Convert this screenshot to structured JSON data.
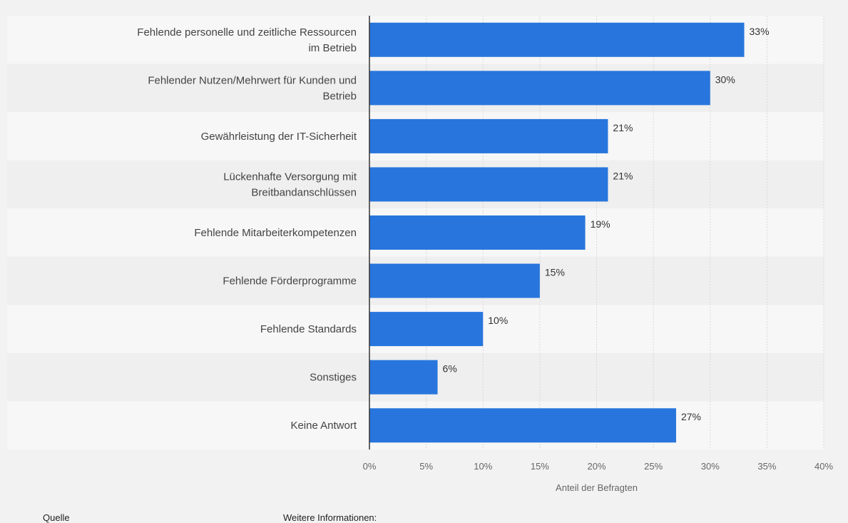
{
  "colors": {
    "bar": "#2876dd",
    "background": "#f2f2f2",
    "plot_band_light": "#f7f7f7",
    "plot_band_dark": "#efefef",
    "grid": "#d8d8d8",
    "axis": "#333333",
    "label_text": "#444444",
    "tick_text": "#666666"
  },
  "chart_data": {
    "type": "bar",
    "orientation": "horizontal",
    "categories": [
      [
        "Fehlende personelle und zeitliche Ressourcen",
        "im Betrieb"
      ],
      [
        "Fehlender Nutzen/Mehrwert für Kunden und",
        "Betrieb"
      ],
      [
        "Gewährleistung der IT-Sicherheit"
      ],
      [
        "Lückenhafte Versorgung mit",
        "Breitbandanschlüssen"
      ],
      [
        "Fehlende Mitarbeiterkompetenzen"
      ],
      [
        "Fehlende Förderprogramme"
      ],
      [
        "Fehlende Standards"
      ],
      [
        "Sonstiges"
      ],
      [
        "Keine Antwort"
      ]
    ],
    "values": [
      33,
      30,
      21,
      21,
      19,
      15,
      10,
      6,
      27
    ],
    "value_labels": [
      "33%",
      "30%",
      "21%",
      "21%",
      "19%",
      "15%",
      "10%",
      "6%",
      "27%"
    ],
    "xlabel": "Anteil der Befragten",
    "xlim": [
      0,
      40
    ],
    "xticks": [
      0,
      5,
      10,
      15,
      20,
      25,
      30,
      35,
      40
    ],
    "xtick_labels": [
      "0%",
      "5%",
      "10%",
      "15%",
      "20%",
      "25%",
      "30%",
      "35%",
      "40%"
    ],
    "grid": true
  },
  "footer": {
    "source_label": "Quelle",
    "more_info_label": "Weitere Informationen:"
  }
}
